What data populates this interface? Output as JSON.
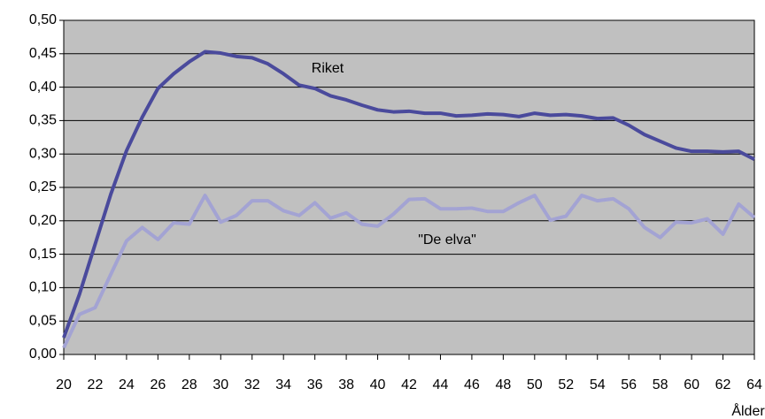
{
  "chart_data": {
    "type": "line",
    "x": [
      20,
      21,
      22,
      23,
      24,
      25,
      26,
      27,
      28,
      29,
      30,
      31,
      32,
      33,
      34,
      35,
      36,
      37,
      38,
      39,
      40,
      41,
      42,
      43,
      44,
      45,
      46,
      47,
      48,
      49,
      50,
      51,
      52,
      53,
      54,
      55,
      56,
      57,
      58,
      59,
      60,
      61,
      62,
      63,
      64
    ],
    "series": [
      {
        "name": "Riket",
        "color": "#4a4a9c",
        "values": [
          0.025,
          0.09,
          0.165,
          0.24,
          0.305,
          0.355,
          0.398,
          0.42,
          0.438,
          0.453,
          0.451,
          0.446,
          0.444,
          0.435,
          0.42,
          0.403,
          0.398,
          0.387,
          0.381,
          0.373,
          0.366,
          0.363,
          0.364,
          0.361,
          0.361,
          0.357,
          0.358,
          0.36,
          0.359,
          0.356,
          0.361,
          0.358,
          0.359,
          0.357,
          0.353,
          0.354,
          0.343,
          0.329,
          0.319,
          0.309,
          0.304,
          0.304,
          0.303,
          0.304,
          0.292
        ]
      },
      {
        "name": "\"De elva\"",
        "color": "#a3a3d3",
        "values": [
          0.01,
          0.06,
          0.07,
          0.12,
          0.17,
          0.19,
          0.172,
          0.197,
          0.195,
          0.238,
          0.198,
          0.208,
          0.23,
          0.23,
          0.215,
          0.208,
          0.227,
          0.204,
          0.212,
          0.195,
          0.192,
          0.21,
          0.232,
          0.233,
          0.218,
          0.218,
          0.219,
          0.214,
          0.214,
          0.227,
          0.238,
          0.201,
          0.207,
          0.238,
          0.23,
          0.233,
          0.218,
          0.19,
          0.175,
          0.198,
          0.197,
          0.203,
          0.18,
          0.225,
          0.205
        ]
      }
    ],
    "x_label": "Ålder",
    "xlim": [
      20,
      64
    ],
    "xticks": [
      20,
      22,
      24,
      26,
      28,
      30,
      32,
      34,
      36,
      38,
      40,
      42,
      44,
      46,
      48,
      50,
      52,
      54,
      56,
      58,
      60,
      62,
      64
    ],
    "ylim": [
      0,
      0.5
    ],
    "yticks": [
      {
        "value": 0,
        "label": "0,00"
      },
      {
        "value": 0.05,
        "label": "0,05"
      },
      {
        "value": 0.1,
        "label": "0,10"
      },
      {
        "value": 0.15,
        "label": "0,15"
      },
      {
        "value": 0.2,
        "label": "0,20"
      },
      {
        "value": 0.25,
        "label": "0,25"
      },
      {
        "value": 0.3,
        "label": "0,30"
      },
      {
        "value": 0.35,
        "label": "0,35"
      },
      {
        "value": 0.4,
        "label": "0,40"
      },
      {
        "value": 0.45,
        "label": "0,45"
      },
      {
        "value": 0.5,
        "label": "0,50"
      }
    ],
    "grid": true
  }
}
